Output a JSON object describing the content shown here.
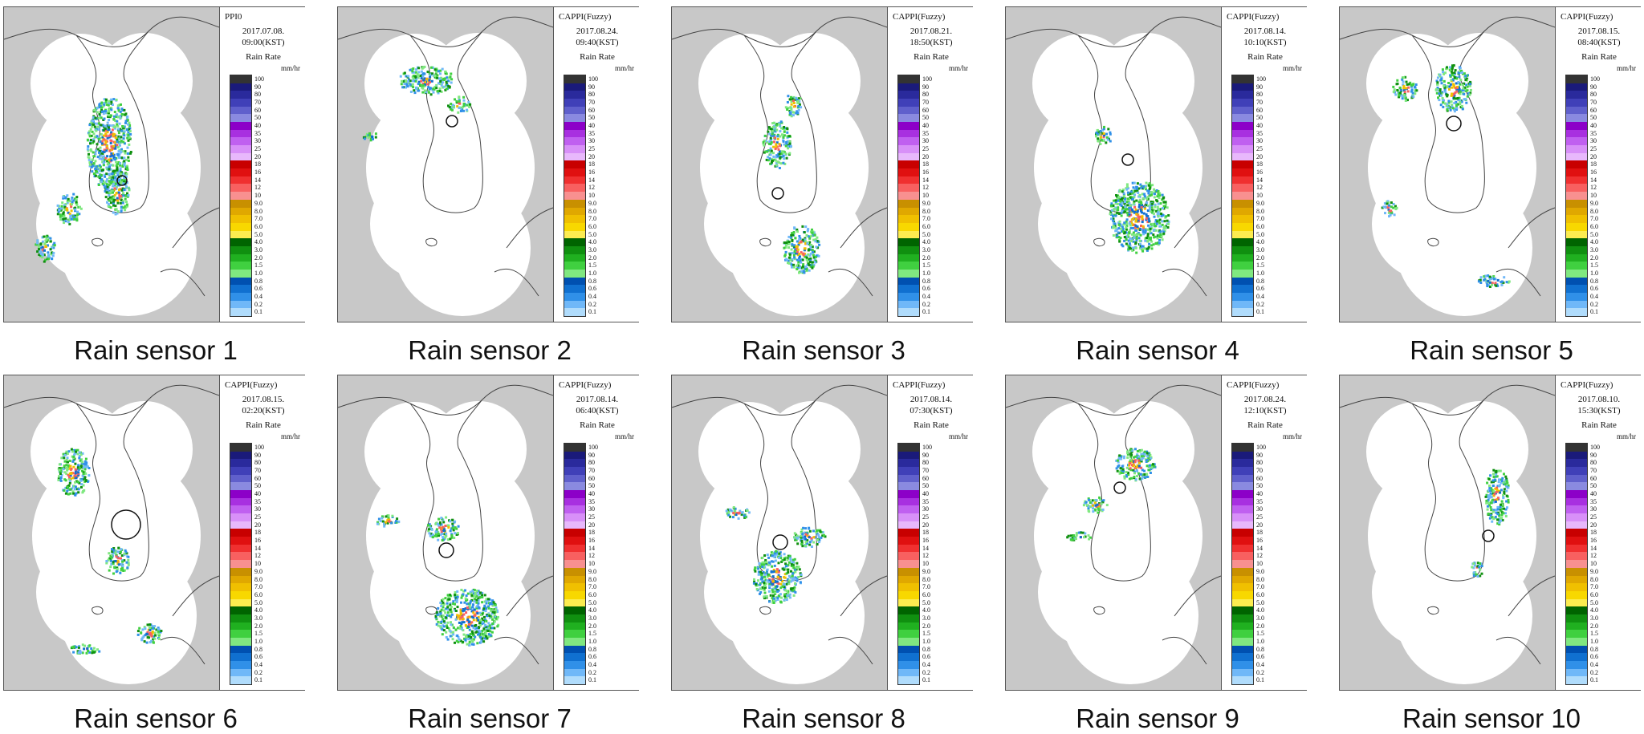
{
  "panels": [
    {
      "product": "PPI0",
      "date": "2017.07.08.",
      "time": "09:00(KST)",
      "rain_rate": "Rain Rate",
      "unit": "mm/hr",
      "caption": "Rain sensor 1"
    },
    {
      "product": "CAPPI(Fuzzy)",
      "date": "2017.08.24.",
      "time": "09:40(KST)",
      "rain_rate": "Rain Rate",
      "unit": "mm/hr",
      "caption": "Rain sensor 2"
    },
    {
      "product": "CAPPI(Fuzzy)",
      "date": "2017.08.21.",
      "time": "18:50(KST)",
      "rain_rate": "Rain Rate",
      "unit": "mm/hr",
      "caption": "Rain sensor 3"
    },
    {
      "product": "CAPPI(Fuzzy)",
      "date": "2017.08.14.",
      "time": "10:10(KST)",
      "rain_rate": "Rain Rate",
      "unit": "mm/hr",
      "caption": "Rain sensor 4"
    },
    {
      "product": "CAPPI(Fuzzy)",
      "date": "2017.08.15.",
      "time": "08:40(KST)",
      "rain_rate": "Rain Rate",
      "unit": "mm/hr",
      "caption": "Rain sensor 5"
    },
    {
      "product": "CAPPI(Fuzzy)",
      "date": "2017.08.15.",
      "time": "02:20(KST)",
      "rain_rate": "Rain Rate",
      "unit": "mm/hr",
      "caption": "Rain sensor 6"
    },
    {
      "product": "CAPPI(Fuzzy)",
      "date": "2017.08.14.",
      "time": "06:40(KST)",
      "rain_rate": "Rain Rate",
      "unit": "mm/hr",
      "caption": "Rain sensor 7"
    },
    {
      "product": "CAPPI(Fuzzy)",
      "date": "2017.08.14.",
      "time": "07:30(KST)",
      "rain_rate": "Rain Rate",
      "unit": "mm/hr",
      "caption": "Rain sensor 8"
    },
    {
      "product": "CAPPI(Fuzzy)",
      "date": "2017.08.24.",
      "time": "12:10(KST)",
      "rain_rate": "Rain Rate",
      "unit": "mm/hr",
      "caption": "Rain sensor 9"
    },
    {
      "product": "CAPPI(Fuzzy)",
      "date": "2017.08.10.",
      "time": "15:30(KST)",
      "rain_rate": "Rain Rate",
      "unit": "mm/hr",
      "caption": "Rain sensor 10"
    }
  ],
  "legend": {
    "labels": [
      "100",
      "90",
      "80",
      "70",
      "60",
      "50",
      "40",
      "35",
      "30",
      "25",
      "20",
      "18",
      "16",
      "14",
      "12",
      "10",
      "9.0",
      "8.0",
      "7.0",
      "6.0",
      "5.0",
      "4.0",
      "3.0",
      "2.0",
      "1.5",
      "1.0",
      "0.8",
      "0.6",
      "0.4",
      "0.2",
      "0.1"
    ],
    "colors": [
      "#333333",
      "#1a1a7a",
      "#2a2a9c",
      "#4040b8",
      "#6060cc",
      "#8a8ae0",
      "#8c00c8",
      "#a830e0",
      "#c060f0",
      "#d890f8",
      "#e8b8fc",
      "#c80000",
      "#e01010",
      "#f03030",
      "#f86060",
      "#f89090",
      "#c89000",
      "#e0a800",
      "#f0c000",
      "#f8d800",
      "#fcec50",
      "#006400",
      "#109010",
      "#20b020",
      "#40d040",
      "#80e880",
      "#0050b0",
      "#1070d0",
      "#3090e8",
      "#70b8f8",
      "#b0dcfc"
    ]
  },
  "colors": {
    "background_gray": "#c8c8c8",
    "coverage_white": "#ffffff",
    "coast_line": "#444444"
  }
}
